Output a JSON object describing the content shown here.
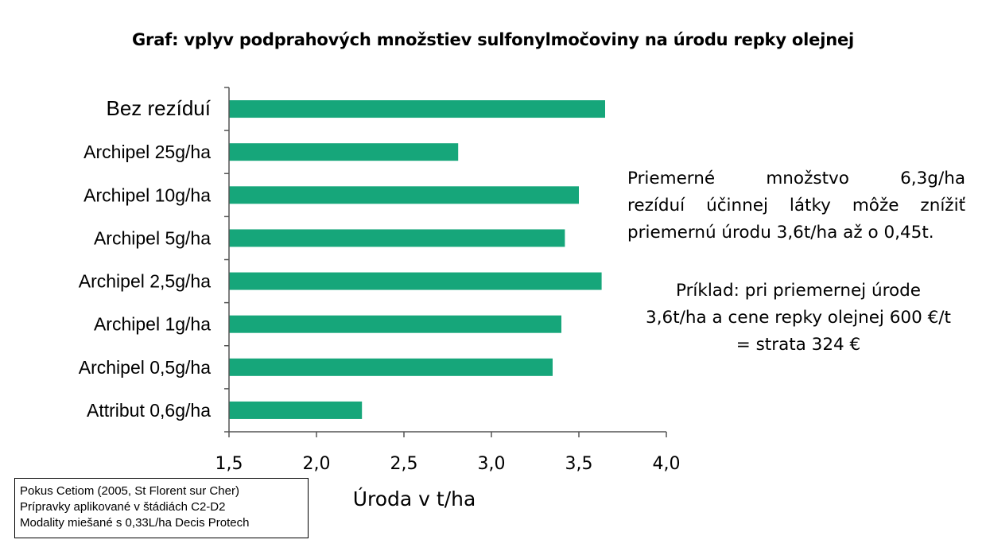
{
  "chart_data": {
    "type": "bar",
    "orientation": "horizontal",
    "title": "Graf: vplyv podprahových množstiev sulfonylmočoviny na úrodu repky olejnej",
    "categories": [
      "Bez rezíduí",
      "Archipel 25g/ha",
      "Archipel 10g/ha",
      "Archipel 5g/ha",
      "Archipel 2,5g/ha",
      "Archipel 1g/ha",
      "Archipel 0,5g/ha",
      "Attribut 0,6g/ha"
    ],
    "values": [
      3.65,
      2.81,
      3.5,
      3.42,
      3.63,
      3.4,
      3.35,
      2.26
    ],
    "xlabel": "Úroda v t/ha",
    "xlim": [
      1.5,
      4.0
    ],
    "xticks": [
      "1,5",
      "2,0",
      "2,5",
      "3,0",
      "3,5",
      "4,0"
    ],
    "bar_color": "#16a67a",
    "grid": false
  },
  "notes": {
    "summary_lines": [
      "Priemerné množstvo 6,3g/ha",
      "rezíduí účinnej látky môže znížiť",
      "priemernú úrodu 3,6t/ha až o 0,45t."
    ],
    "example_lines": [
      "Príklad: pri priemernej úrode",
      "3,6t/ha a cene repky olejnej 600 €/t",
      "= strata 324 €"
    ]
  },
  "source_box": {
    "lines": [
      "Pokus Cetiom (2005, St Florent sur Cher)",
      "Prípravky aplikované v štádiách C2-D2",
      "Modality miešané s 0,33L/ha Decis Protech"
    ]
  }
}
